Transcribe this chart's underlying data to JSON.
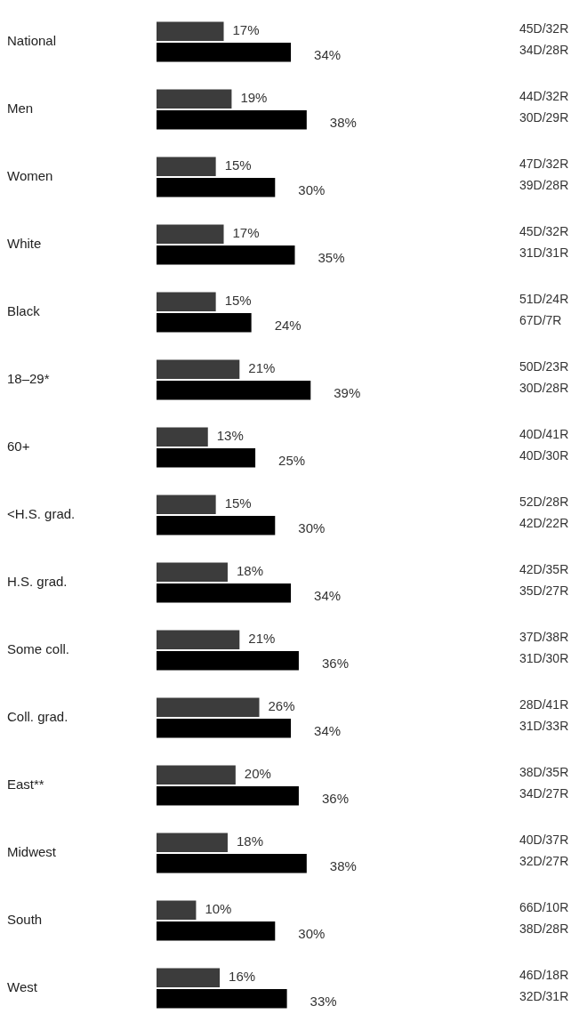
{
  "chart_data": {
    "type": "bar",
    "orientation": "horizontal",
    "categories": [
      "National",
      "Men",
      "Women",
      "White",
      "Black",
      "18–29*",
      "60+",
      "<H.S. grad.",
      "H.S. grad.",
      "Some coll.",
      "Coll. grad.",
      "East**",
      "Midwest",
      "South",
      "West"
    ],
    "series": [
      {
        "color": "#3c3c3c",
        "values": [
          17,
          19,
          15,
          17,
          15,
          21,
          13,
          15,
          18,
          21,
          26,
          20,
          18,
          10,
          16
        ],
        "value_labels": [
          "17%",
          "19%",
          "15%",
          "17%",
          "15%",
          "21%",
          "13%",
          "15%",
          "18%",
          "21%",
          "26%",
          "20%",
          "18%",
          "10%",
          "16%"
        ]
      },
      {
        "color": "#000000",
        "values": [
          34,
          38,
          30,
          35,
          24,
          39,
          25,
          30,
          34,
          36,
          34,
          36,
          38,
          30,
          33
        ],
        "value_labels": [
          "34%",
          "38%",
          "30%",
          "35%",
          "24%",
          "39%",
          "25%",
          "30%",
          "34%",
          "36%",
          "34%",
          "36%",
          "38%",
          "30%",
          "33%"
        ]
      }
    ],
    "tick_labels": "y",
    "grid": false,
    "legend": false,
    "annotations": [
      "45D/32R",
      "34D/28R",
      "44D/32R",
      "30D/29R",
      "47D/32R",
      "39D/28R",
      "45D/32R",
      "31D/31R",
      "51D/24R",
      "67D/7R",
      "50D/23R",
      "30D/28R",
      "40D/41R",
      "40D/30R",
      "52D/28R",
      "42D/22R",
      "42D/35R",
      "35D/27R",
      "37D/38R",
      "31D/30R",
      "28D/41R",
      "31D/33R",
      "38D/35R",
      "34D/27R",
      "40D/37R",
      "32D/27R",
      "66D/10R",
      "38D/28R",
      "46D/18R",
      "32D/31R"
    ]
  }
}
